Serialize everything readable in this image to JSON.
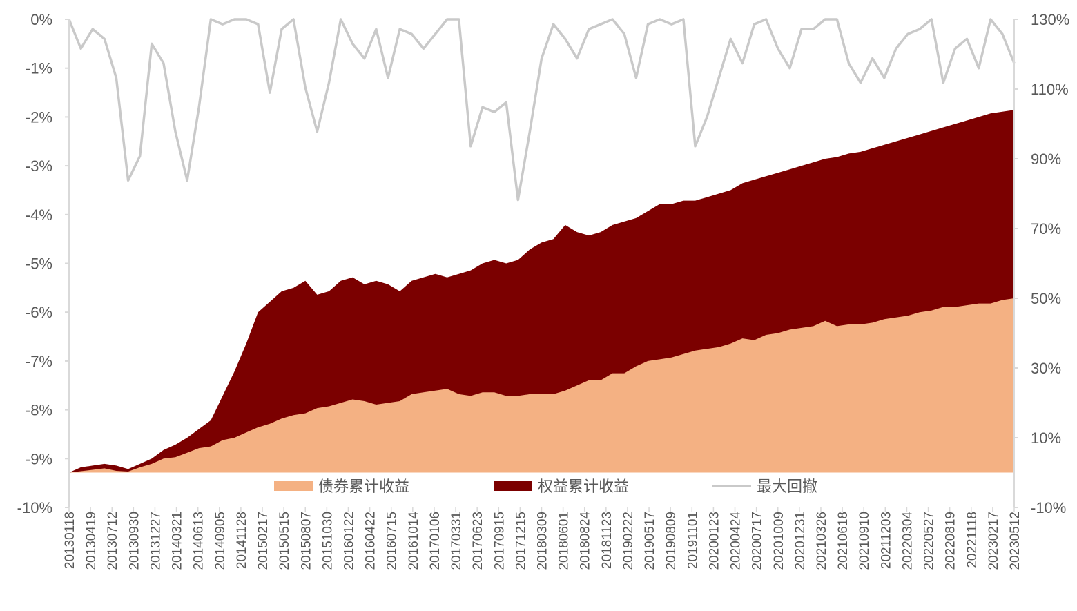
{
  "chart_data": {
    "type": "area",
    "x_ticks": [
      "20130118",
      "20130419",
      "20130712",
      "20130930",
      "20131227",
      "20140321",
      "20140613",
      "20140905",
      "20141128",
      "20150217",
      "20150515",
      "20150807",
      "20151030",
      "20160122",
      "20160422",
      "20160715",
      "20161014",
      "20170106",
      "20170331",
      "20170623",
      "20170915",
      "20171215",
      "20180309",
      "20180601",
      "20180824",
      "20181123",
      "20190222",
      "20190517",
      "20190809",
      "20191101",
      "20200123",
      "20200424",
      "20200717",
      "20201009",
      "20201231",
      "20210326",
      "20210618",
      "20210910",
      "20211203",
      "20220304",
      "20220527",
      "20220819",
      "20221118",
      "20230217",
      "20230512"
    ],
    "left_axis": {
      "ticks": [
        "0%",
        "-1%",
        "-2%",
        "-3%",
        "-4%",
        "-5%",
        "-6%",
        "-7%",
        "-8%",
        "-9%",
        "-10%"
      ],
      "ylim": [
        -10,
        0
      ]
    },
    "right_axis": {
      "ticks": [
        "130%",
        "110%",
        "90%",
        "70%",
        "50%",
        "30%",
        "10%",
        "-10%"
      ],
      "ylim": [
        -10,
        130
      ]
    },
    "series": [
      {
        "name": "债券累计收益",
        "axis": "right",
        "color": "#F4B183",
        "values": [
          0.0,
          0.4,
          0.8,
          1.2,
          0.5,
          0.3,
          1.5,
          2.5,
          4.0,
          4.4,
          5.7,
          7.0,
          7.5,
          9.3,
          10.0,
          11.5,
          13.0,
          14.0,
          15.5,
          16.5,
          17.0,
          18.5,
          19.0,
          20.0,
          21.0,
          20.5,
          19.5,
          20.0,
          20.5,
          22.5,
          23.0,
          23.5,
          24.0,
          22.5,
          22.0,
          23.0,
          23.0,
          22.0,
          22.0,
          22.5,
          22.5,
          22.5,
          23.5,
          25.0,
          26.5,
          26.5,
          28.5,
          28.5,
          30.5,
          32.0,
          32.5,
          33.0,
          34.0,
          35.0,
          35.5,
          36.0,
          37.0,
          38.5,
          38.0,
          39.5,
          40.0,
          41.0,
          41.5,
          42.0,
          43.5,
          42.0,
          42.5,
          42.5,
          43.0,
          44.0,
          44.5,
          45.0,
          46.0,
          46.5,
          47.5,
          47.5,
          48.0,
          48.5,
          48.5,
          49.5,
          50.0
        ]
      },
      {
        "name": "权益累计收益",
        "axis": "right",
        "color": "#7B0000",
        "values": [
          0.0,
          1.5,
          2.0,
          2.5,
          2.0,
          1.0,
          2.5,
          4.0,
          6.5,
          8.0,
          10.0,
          12.5,
          15.0,
          22.0,
          29.0,
          37.0,
          46.0,
          49.0,
          52.0,
          53.0,
          55.0,
          51.0,
          52.0,
          55.0,
          56.0,
          54.0,
          55.0,
          54.0,
          52.0,
          55.0,
          56.0,
          57.0,
          56.0,
          57.0,
          58.0,
          60.0,
          61.0,
          60.0,
          61.0,
          64.0,
          66.0,
          67.0,
          71.0,
          69.0,
          68.0,
          69.0,
          71.0,
          72.0,
          73.0,
          75.0,
          77.0,
          77.0,
          78.0,
          78.0,
          79.0,
          80.0,
          81.0,
          83.0,
          84.0,
          85.0,
          86.0,
          87.0,
          88.0,
          89.0,
          90.0,
          90.5,
          91.5,
          92.0,
          93.0,
          94.0,
          95.0,
          96.0,
          97.0,
          98.0,
          99.0,
          100.0,
          101.0,
          102.0,
          103.0,
          103.5,
          104.0
        ]
      },
      {
        "name": "最大回撤",
        "axis": "left",
        "color": "#C9C9C9",
        "values": [
          0.0,
          -0.6,
          -0.2,
          -0.4,
          -1.2,
          -3.3,
          -2.8,
          -0.5,
          -0.9,
          -2.3,
          -3.3,
          -1.8,
          0.0,
          -0.1,
          0.0,
          0.0,
          -0.1,
          -1.5,
          -0.2,
          0.0,
          -1.4,
          -2.3,
          -1.3,
          0.0,
          -0.5,
          -0.8,
          -0.2,
          -1.2,
          -0.2,
          -0.3,
          -0.6,
          -0.3,
          0.0,
          0.0,
          -2.6,
          -1.8,
          -1.9,
          -1.7,
          -3.7,
          -2.3,
          -0.8,
          -0.1,
          -0.4,
          -0.8,
          -0.2,
          -0.1,
          0.0,
          -0.3,
          -1.2,
          -0.1,
          0.0,
          -0.1,
          0.0,
          -2.6,
          -2.0,
          -1.2,
          -0.4,
          -0.9,
          -0.1,
          0.0,
          -0.6,
          -1.0,
          -0.2,
          -0.2,
          0.0,
          0.0,
          -0.9,
          -1.3,
          -0.8,
          -1.2,
          -0.6,
          -0.3,
          -0.2,
          0.0,
          -1.3,
          -0.6,
          -0.4,
          -1.0,
          0.0,
          -0.3,
          -0.9
        ]
      }
    ]
  }
}
